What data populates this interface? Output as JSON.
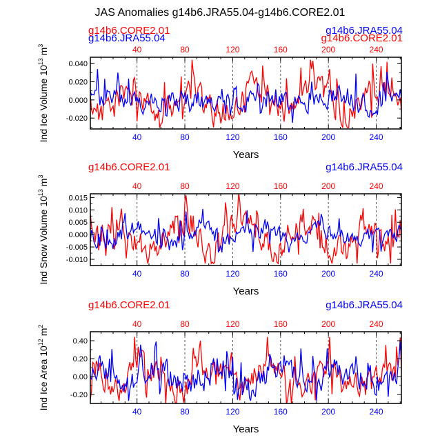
{
  "title": "JAS Anomalies g14b6.JRA55.04-g14b6.CORE2.01",
  "colors": {
    "core": "#ff0000",
    "jra": "#0000ff",
    "axis": "#000000",
    "grid": "#555555"
  },
  "chart_data": [
    {
      "type": "line",
      "panel": "ice-volume",
      "ylabel": "Ind Ice Volume 10",
      "ylabel_exp": "13",
      "ylabel_unit": " m",
      "ylabel_unit_exp": "3",
      "xlabel": "Years",
      "top_left_labels": [
        "g14b6.CORE2.01",
        "g14b6.JRA55.04"
      ],
      "top_right_labels": [
        "g14b6.JRA55.04",
        "g14b6.CORE2.01"
      ],
      "xlim": [
        1,
        261
      ],
      "ylim": [
        -0.032,
        0.047
      ],
      "yticks": [
        -0.02,
        0.0,
        0.02,
        0.04
      ],
      "ytick_labels": [
        "-0.020",
        "0.000",
        "0.020",
        "0.040"
      ],
      "xticks": [
        40,
        80,
        120,
        160,
        200,
        240
      ],
      "xtick_labels": [
        "40",
        "80",
        "120",
        "160",
        "200",
        "240"
      ],
      "dashed_x": [
        40,
        80,
        120,
        160,
        200,
        240
      ],
      "series": [
        {
          "name": "g14b6.CORE2.01",
          "color": "#ff0000",
          "amp": 0.017,
          "seed": 11
        },
        {
          "name": "g14b6.JRA55.04",
          "color": "#0000ff",
          "amp": 0.014,
          "seed": 23
        }
      ]
    },
    {
      "type": "line",
      "panel": "snow-volume",
      "ylabel": "Ind Snow Volume 10",
      "ylabel_exp": "13",
      "ylabel_unit": " m",
      "ylabel_unit_exp": "3",
      "xlabel": "Years",
      "top_left_labels": [
        "g14b6.CORE2.01"
      ],
      "top_right_labels": [
        "g14b6.JRA55.04"
      ],
      "xlim": [
        1,
        261
      ],
      "ylim": [
        -0.0125,
        0.0165
      ],
      "yticks": [
        -0.01,
        -0.005,
        0.0,
        0.005,
        0.01,
        0.015
      ],
      "ytick_labels": [
        "-0.010",
        "-0.005",
        "0.000",
        "0.005",
        "0.010",
        "0.015"
      ],
      "xticks": [
        40,
        80,
        120,
        160,
        200,
        240
      ],
      "xtick_labels": [
        "40",
        "80",
        "120",
        "160",
        "200",
        "240"
      ],
      "dashed_x": [
        40,
        80,
        120,
        160,
        200,
        240
      ],
      "series": [
        {
          "name": "g14b6.CORE2.01",
          "color": "#ff0000",
          "amp": 0.0065,
          "seed": 37
        },
        {
          "name": "g14b6.JRA55.04",
          "color": "#0000ff",
          "amp": 0.004,
          "seed": 53
        }
      ]
    },
    {
      "type": "line",
      "panel": "ice-area",
      "ylabel": "Ind Ice Area 10",
      "ylabel_exp": "12",
      "ylabel_unit": " m",
      "ylabel_unit_exp": "2",
      "xlabel": "Years",
      "top_left_labels": [
        "g14b6.CORE2.01"
      ],
      "top_right_labels": [
        "g14b6.JRA55.04"
      ],
      "xlim": [
        1,
        261
      ],
      "ylim": [
        -0.3,
        0.5
      ],
      "yticks": [
        -0.2,
        0.0,
        0.2,
        0.4
      ],
      "ytick_labels": [
        "-0.20",
        "0.00",
        "0.20",
        "0.40"
      ],
      "xticks": [
        40,
        80,
        120,
        160,
        200,
        240
      ],
      "xtick_labels": [
        "40",
        "80",
        "120",
        "160",
        "200",
        "240"
      ],
      "dashed_x": [
        40,
        80,
        120,
        160,
        200,
        240
      ],
      "series": [
        {
          "name": "g14b6.CORE2.01",
          "color": "#ff0000",
          "amp": 0.17,
          "seed": 71
        },
        {
          "name": "g14b6.JRA55.04",
          "color": "#0000ff",
          "amp": 0.15,
          "seed": 89
        }
      ]
    }
  ]
}
